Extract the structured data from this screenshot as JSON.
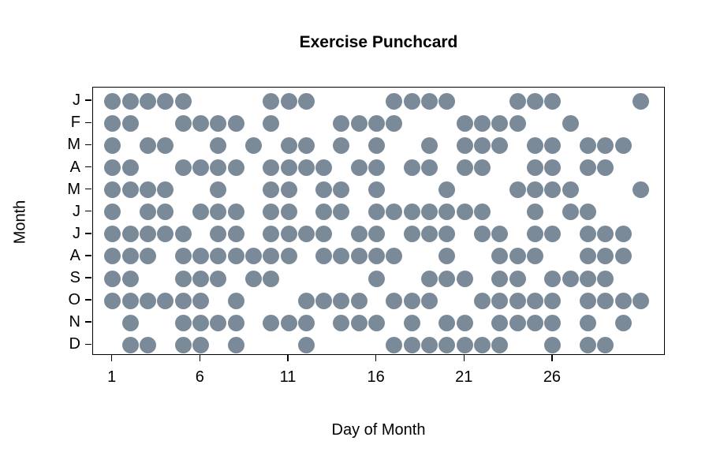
{
  "chart_data": {
    "type": "scatter",
    "variant": "punchcard",
    "title": "Exercise Punchcard",
    "xlabel": "Day of Month",
    "ylabel": "Month",
    "grid": false,
    "legend": "none",
    "xlim": [
      1,
      31
    ],
    "x_tick_days": [
      1,
      6,
      11,
      16,
      21,
      26
    ],
    "x_tick_labels": [
      "1",
      "6",
      "11",
      "16",
      "21",
      "26"
    ],
    "y_categories": [
      "J",
      "F",
      "M",
      "A",
      "M",
      "J",
      "J",
      "A",
      "S",
      "O",
      "N",
      "D"
    ],
    "colors": {
      "dot": "#7a8a99",
      "axis": "#000000",
      "background": "#ffffff"
    },
    "rows": [
      {
        "label": "J",
        "days": [
          1,
          2,
          3,
          4,
          5,
          10,
          11,
          12,
          17,
          18,
          19,
          20,
          24,
          25,
          26,
          31
        ]
      },
      {
        "label": "F",
        "days": [
          1,
          2,
          5,
          6,
          7,
          8,
          10,
          14,
          15,
          16,
          17,
          21,
          22,
          23,
          24,
          27
        ]
      },
      {
        "label": "M",
        "days": [
          1,
          3,
          4,
          7,
          9,
          11,
          12,
          14,
          16,
          19,
          21,
          22,
          23,
          25,
          26,
          28,
          29,
          30
        ]
      },
      {
        "label": "A",
        "days": [
          1,
          2,
          5,
          6,
          7,
          8,
          10,
          11,
          12,
          13,
          15,
          16,
          18,
          19,
          21,
          22,
          25,
          26,
          28,
          29
        ]
      },
      {
        "label": "M",
        "days": [
          1,
          2,
          3,
          4,
          7,
          10,
          11,
          13,
          14,
          16,
          20,
          24,
          25,
          26,
          27,
          31
        ]
      },
      {
        "label": "J",
        "days": [
          1,
          3,
          4,
          6,
          7,
          8,
          10,
          11,
          13,
          14,
          16,
          17,
          18,
          19,
          20,
          21,
          22,
          25,
          27,
          28
        ]
      },
      {
        "label": "J",
        "days": [
          1,
          2,
          3,
          4,
          5,
          7,
          8,
          10,
          11,
          12,
          13,
          15,
          16,
          18,
          19,
          20,
          22,
          23,
          25,
          26,
          28,
          29,
          30
        ]
      },
      {
        "label": "A",
        "days": [
          1,
          2,
          3,
          5,
          6,
          7,
          8,
          9,
          10,
          11,
          13,
          14,
          15,
          16,
          17,
          20,
          23,
          24,
          25,
          28,
          29,
          30
        ]
      },
      {
        "label": "S",
        "days": [
          1,
          2,
          5,
          6,
          7,
          9,
          10,
          16,
          19,
          20,
          21,
          23,
          24,
          26,
          27,
          28,
          29
        ]
      },
      {
        "label": "O",
        "days": [
          1,
          2,
          3,
          4,
          5,
          6,
          8,
          12,
          13,
          14,
          15,
          17,
          18,
          19,
          22,
          23,
          24,
          25,
          26,
          28,
          29,
          30,
          31
        ]
      },
      {
        "label": "N",
        "days": [
          2,
          5,
          6,
          7,
          8,
          10,
          11,
          12,
          14,
          15,
          16,
          18,
          20,
          21,
          23,
          24,
          25,
          26,
          28,
          30
        ]
      },
      {
        "label": "D",
        "days": [
          2,
          3,
          5,
          6,
          8,
          12,
          17,
          18,
          19,
          20,
          21,
          22,
          23,
          26,
          28,
          29
        ]
      }
    ]
  }
}
